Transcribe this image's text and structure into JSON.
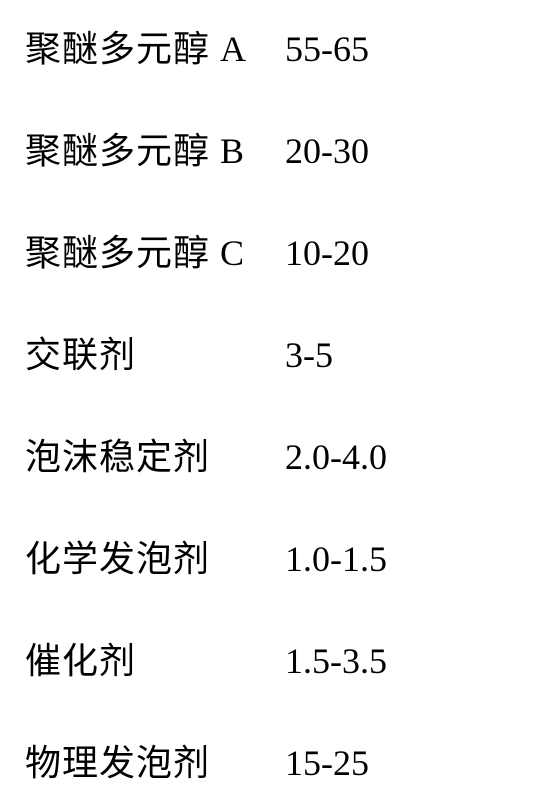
{
  "table": {
    "rows": [
      {
        "label": "聚醚多元醇 A",
        "value": "55-65"
      },
      {
        "label": "聚醚多元醇 B",
        "value": "20-30"
      },
      {
        "label": "聚醚多元醇 C",
        "value": "10-20"
      },
      {
        "label": "交联剂",
        "value": "3-5"
      },
      {
        "label": "泡沫稳定剂",
        "value": "2.0-4.0"
      },
      {
        "label": "化学发泡剂",
        "value": "1.0-1.5"
      },
      {
        "label": "催化剂",
        "value": "1.5-3.5"
      },
      {
        "label": "物理发泡剂",
        "value": "15-25"
      }
    ],
    "styling": {
      "background_color": "#ffffff",
      "text_color": "#000000",
      "font_family": "SimSun",
      "label_fontsize": 36,
      "value_fontsize": 36,
      "label_column_width": 260,
      "row_spacing": 50
    }
  }
}
